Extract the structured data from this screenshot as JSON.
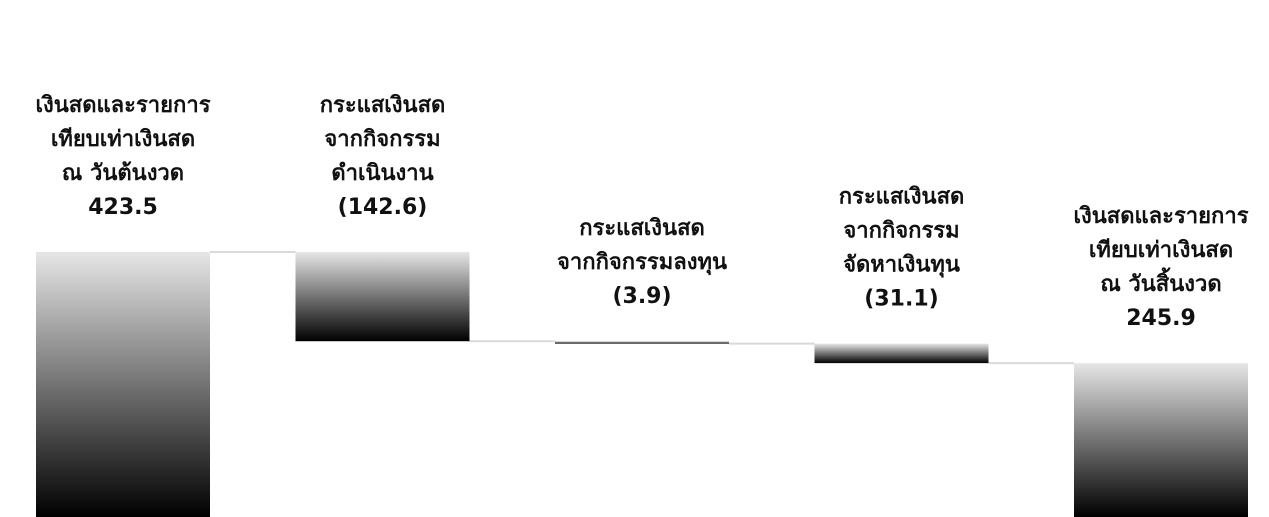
{
  "chart_data": {
    "type": "bar",
    "subtype": "waterfall",
    "title": "",
    "xlabel": "",
    "ylabel": "",
    "ylim": [
      0,
      423.5
    ],
    "grid": false,
    "legend": "none",
    "categories": [
      [
        "เงินสดและรายการ",
        "เทียบเท่าเงินสด",
        "ณ วันต้นงวด"
      ],
      [
        "กระแสเงินสด",
        "จากกิจกรรม",
        "ดำเนินงาน"
      ],
      [
        "กระแสเงินสด",
        "จากกิจกรรมลงทุน"
      ],
      [
        "กระแสเงินสด",
        "จากกิจกรรม",
        "จัดหาเงินทุน"
      ],
      [
        "เงินสดและรายการ",
        "เทียบเท่าเงินสด",
        "ณ วันสิ้นงวด"
      ]
    ],
    "value_labels": [
      "423.5",
      "(142.6)",
      "(3.9)",
      "(31.1)",
      "245.9"
    ],
    "values": [
      423.5,
      -142.6,
      -3.9,
      -31.1,
      245.9
    ],
    "bar_kinds": [
      "total",
      "delta",
      "delta",
      "delta",
      "total"
    ],
    "colors": {
      "gradient_top": "#e6e6e6",
      "gradient_bottom": "#000000",
      "connector": "#d9d9d9",
      "text": "#111111"
    }
  }
}
